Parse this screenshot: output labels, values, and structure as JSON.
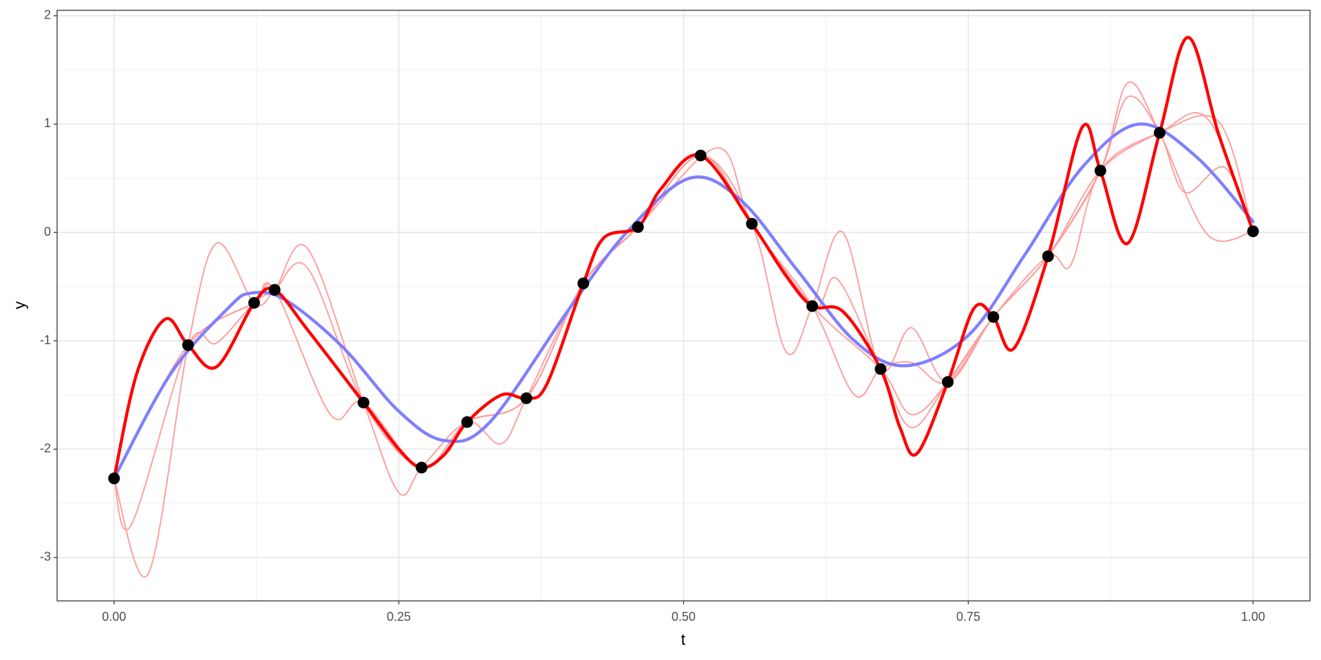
{
  "chart_data": {
    "type": "line",
    "x_label": "t",
    "y_label": "y",
    "xlim": [
      -0.05,
      1.05
    ],
    "ylim": [
      -3.4,
      2.05
    ],
    "xticks": [
      {
        "value": 0,
        "label": "0.00"
      },
      {
        "value": 0.25,
        "label": "0.25"
      },
      {
        "value": 0.5,
        "label": "0.50"
      },
      {
        "value": 0.75,
        "label": "0.75"
      },
      {
        "value": 1,
        "label": "1.00"
      }
    ],
    "yticks": [
      -3,
      -2,
      -1,
      0,
      1,
      2
    ],
    "grid": true,
    "series": [
      {
        "style": "thin",
        "color": "#ff9a9a",
        "x": [
          0,
          0.03,
          0.065,
          0.09,
          0.123,
          0.141,
          0.17,
          0.219,
          0.25,
          0.27,
          0.31,
          0.34,
          0.362,
          0.412,
          0.46,
          0.515,
          0.56,
          0.59,
          0.613,
          0.64,
          0.673,
          0.7,
          0.732,
          0.772,
          0.82,
          0.866,
          0.89,
          0.918,
          0.96,
          1.0
        ],
        "values": [
          -2.27,
          -3.15,
          -1.04,
          -0.1,
          -0.65,
          -0.53,
          -0.15,
          -1.57,
          -2.4,
          -2.17,
          -1.75,
          -1.95,
          -1.53,
          -0.47,
          0.05,
          0.71,
          0.08,
          -1.1,
          -0.68,
          0.0,
          -1.26,
          -0.88,
          -1.38,
          -0.78,
          -0.22,
          0.57,
          1.38,
          0.92,
          -0.02,
          0.01
        ]
      },
      {
        "style": "thin",
        "color": "#ff9a9a",
        "x": [
          0,
          0.015,
          0.065,
          0.09,
          0.123,
          0.141,
          0.17,
          0.219,
          0.27,
          0.31,
          0.362,
          0.412,
          0.46,
          0.515,
          0.56,
          0.613,
          0.635,
          0.673,
          0.7,
          0.732,
          0.772,
          0.82,
          0.866,
          0.89,
          0.918,
          0.94,
          0.975,
          1.0
        ],
        "values": [
          -2.27,
          -2.7,
          -1.04,
          -1.02,
          -0.65,
          -0.53,
          -0.33,
          -1.57,
          -2.17,
          -1.75,
          -1.53,
          -0.47,
          0.05,
          0.71,
          0.08,
          -0.68,
          -0.43,
          -1.26,
          -1.8,
          -1.38,
          -0.78,
          -0.22,
          0.57,
          1.25,
          0.92,
          0.37,
          0.6,
          0.01
        ]
      },
      {
        "style": "thin",
        "color": "#ff9a9a",
        "x": [
          0,
          0.065,
          0.123,
          0.141,
          0.19,
          0.219,
          0.27,
          0.31,
          0.362,
          0.412,
          0.46,
          0.53,
          0.56,
          0.613,
          0.65,
          0.673,
          0.7,
          0.732,
          0.772,
          0.82,
          0.866,
          0.918,
          0.96,
          1.0
        ],
        "values": [
          -2.27,
          -1.04,
          -0.65,
          -0.53,
          -1.68,
          -1.57,
          -2.17,
          -1.75,
          -1.53,
          -0.47,
          0.05,
          0.78,
          0.08,
          -0.68,
          -1.5,
          -1.26,
          -1.2,
          -1.38,
          -0.78,
          -0.22,
          0.57,
          0.92,
          1.05,
          0.01
        ]
      },
      {
        "style": "thin",
        "color": "#ff9a9a",
        "x": [
          0,
          0.065,
          0.123,
          0.141,
          0.219,
          0.27,
          0.31,
          0.362,
          0.412,
          0.46,
          0.515,
          0.56,
          0.613,
          0.673,
          0.7,
          0.732,
          0.772,
          0.82,
          0.84,
          0.866,
          0.918,
          0.97,
          1.0
        ],
        "values": [
          -2.27,
          -1.04,
          -0.65,
          -0.53,
          -1.57,
          -2.17,
          -1.75,
          -1.53,
          -0.47,
          0.05,
          0.71,
          0.08,
          -0.68,
          -1.26,
          -1.68,
          -1.38,
          -0.78,
          -0.22,
          -0.3,
          0.57,
          0.92,
          1.02,
          0.01
        ]
      },
      {
        "style": "blue",
        "color": "#7f7fff",
        "x": [
          0,
          0.05,
          0.1,
          0.12,
          0.15,
          0.2,
          0.25,
          0.29,
          0.33,
          0.4,
          0.45,
          0.505,
          0.55,
          0.6,
          0.65,
          0.695,
          0.75,
          0.8,
          0.85,
          0.9,
          0.95,
          1.0
        ],
        "values": [
          -2.27,
          -1.3,
          -0.7,
          -0.56,
          -0.62,
          -1.05,
          -1.65,
          -1.92,
          -1.75,
          -0.7,
          0.0,
          0.5,
          0.3,
          -0.35,
          -1.0,
          -1.23,
          -0.95,
          -0.2,
          0.6,
          1.0,
          0.7,
          0.1
        ]
      },
      {
        "style": "thick",
        "color": "#ff0000",
        "x": [
          0,
          0.02,
          0.045,
          0.065,
          0.09,
          0.123,
          0.141,
          0.17,
          0.219,
          0.25,
          0.27,
          0.29,
          0.31,
          0.34,
          0.362,
          0.38,
          0.412,
          0.43,
          0.46,
          0.48,
          0.515,
          0.56,
          0.59,
          0.613,
          0.64,
          0.673,
          0.69,
          0.705,
          0.732,
          0.755,
          0.772,
          0.79,
          0.82,
          0.85,
          0.866,
          0.89,
          0.918,
          0.943,
          0.97,
          1.0
        ],
        "values": [
          -2.27,
          -1.3,
          -0.8,
          -1.04,
          -1.24,
          -0.65,
          -0.53,
          -0.9,
          -1.57,
          -2.0,
          -2.17,
          -2.05,
          -1.75,
          -1.5,
          -1.53,
          -1.4,
          -0.47,
          -0.05,
          0.05,
          0.4,
          0.71,
          0.08,
          -0.4,
          -0.68,
          -0.73,
          -1.26,
          -1.8,
          -2.04,
          -1.38,
          -0.7,
          -0.78,
          -1.07,
          -0.22,
          0.97,
          0.57,
          -0.1,
          0.92,
          1.8,
          0.9,
          0.01
        ]
      },
      {
        "style": "points",
        "color": "#000000",
        "x": [
          0,
          0.065,
          0.123,
          0.141,
          0.219,
          0.27,
          0.31,
          0.362,
          0.412,
          0.46,
          0.515,
          0.56,
          0.613,
          0.673,
          0.732,
          0.772,
          0.82,
          0.866,
          0.918,
          1.0
        ],
        "values": [
          -2.27,
          -1.04,
          -0.65,
          -0.53,
          -1.57,
          -2.17,
          -1.75,
          -1.53,
          -0.47,
          0.05,
          0.71,
          0.08,
          -0.68,
          -1.26,
          -1.38,
          -0.78,
          -0.22,
          0.57,
          0.92,
          0.01
        ]
      }
    ]
  }
}
